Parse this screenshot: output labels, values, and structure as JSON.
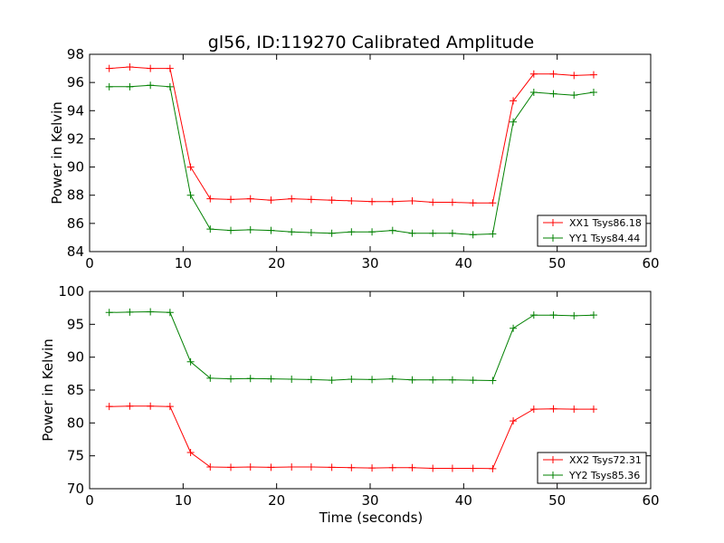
{
  "chart_data": [
    {
      "type": "line",
      "title": "gl56, ID:119270 Calibrated Amplitude",
      "xlabel": "",
      "ylabel": "Power in Kelvin",
      "xlim": [
        0,
        60
      ],
      "ylim": [
        84,
        98
      ],
      "xticks": [
        0,
        10,
        20,
        30,
        40,
        50,
        60
      ],
      "yticks": [
        84,
        86,
        88,
        90,
        92,
        94,
        96,
        98
      ],
      "grid": false,
      "legend_position": "lower-right",
      "x": [
        2.1,
        4.3,
        6.5,
        8.6,
        10.8,
        12.9,
        15.1,
        17.2,
        19.4,
        21.6,
        23.7,
        25.9,
        28.0,
        30.2,
        32.4,
        34.5,
        36.7,
        38.8,
        41.0,
        43.1,
        45.3,
        47.5,
        49.6,
        51.8,
        53.9
      ],
      "series": [
        {
          "name": "XX1 Tsys86.18",
          "color": "#ff0000",
          "values": [
            97.0,
            97.1,
            97.0,
            97.0,
            90.0,
            87.75,
            87.7,
            87.75,
            87.65,
            87.75,
            87.7,
            87.65,
            87.6,
            87.55,
            87.55,
            87.6,
            87.5,
            87.5,
            87.45,
            87.45,
            94.7,
            96.6,
            96.6,
            96.5,
            96.55
          ]
        },
        {
          "name": "YY1 Tsys84.44",
          "color": "#008000",
          "values": [
            95.7,
            95.7,
            95.8,
            95.7,
            88.0,
            85.6,
            85.5,
            85.55,
            85.5,
            85.4,
            85.35,
            85.3,
            85.4,
            85.4,
            85.5,
            85.3,
            85.3,
            85.3,
            85.2,
            85.25,
            93.2,
            95.3,
            95.2,
            95.1,
            95.3
          ]
        }
      ]
    },
    {
      "type": "line",
      "title": "",
      "xlabel": "Time (seconds)",
      "ylabel": "Power in Kelvin",
      "xlim": [
        0,
        60
      ],
      "ylim": [
        70,
        100
      ],
      "xticks": [
        0,
        10,
        20,
        30,
        40,
        50,
        60
      ],
      "yticks": [
        70,
        75,
        80,
        85,
        90,
        95,
        100
      ],
      "grid": false,
      "legend_position": "lower-right",
      "x": [
        2.1,
        4.3,
        6.5,
        8.6,
        10.8,
        12.9,
        15.1,
        17.2,
        19.4,
        21.6,
        23.7,
        25.9,
        28.0,
        30.2,
        32.4,
        34.5,
        36.7,
        38.8,
        41.0,
        43.1,
        45.3,
        47.5,
        49.6,
        51.8,
        53.9
      ],
      "series": [
        {
          "name": "XX2 Tsys72.31",
          "color": "#ff0000",
          "values": [
            82.5,
            82.55,
            82.55,
            82.5,
            75.5,
            73.3,
            73.25,
            73.3,
            73.25,
            73.3,
            73.3,
            73.25,
            73.2,
            73.15,
            73.2,
            73.2,
            73.1,
            73.1,
            73.1,
            73.05,
            80.3,
            82.1,
            82.15,
            82.1,
            82.1
          ]
        },
        {
          "name": "YY2 Tsys85.36",
          "color": "#008000",
          "values": [
            96.8,
            96.85,
            96.9,
            96.8,
            89.3,
            86.8,
            86.7,
            86.75,
            86.7,
            86.65,
            86.6,
            86.5,
            86.65,
            86.6,
            86.7,
            86.55,
            86.55,
            86.55,
            86.5,
            86.45,
            94.4,
            96.4,
            96.4,
            96.3,
            96.4
          ]
        }
      ]
    }
  ]
}
